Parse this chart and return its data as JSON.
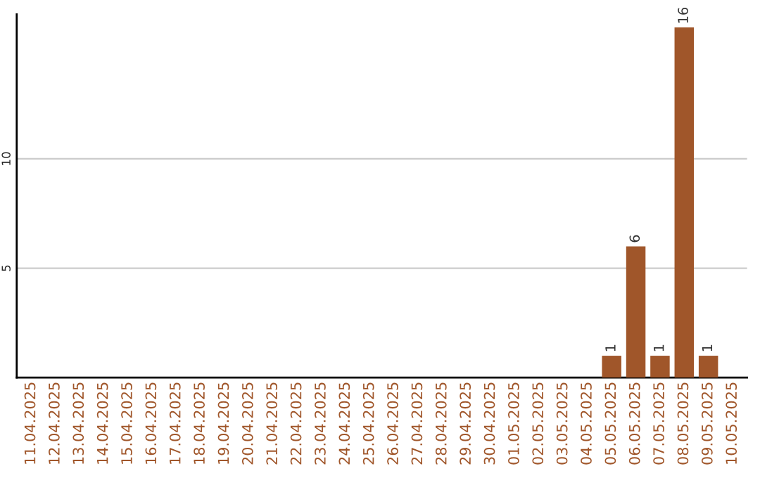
{
  "chart_data": {
    "type": "bar",
    "categories": [
      "11.04.2025",
      "12.04.2025",
      "13.04.2025",
      "14.04.2025",
      "15.04.2025",
      "16.04.2025",
      "17.04.2025",
      "18.04.2025",
      "19.04.2025",
      "20.04.2025",
      "21.04.2025",
      "22.04.2025",
      "23.04.2025",
      "24.04.2025",
      "25.04.2025",
      "26.04.2025",
      "27.04.2025",
      "28.04.2025",
      "29.04.2025",
      "30.04.2025",
      "01.05.2025",
      "02.05.2025",
      "03.05.2025",
      "04.05.2025",
      "05.05.2025",
      "06.05.2025",
      "07.05.2025",
      "08.05.2025",
      "09.05.2025",
      "10.05.2025"
    ],
    "series": [
      {
        "color": "#a0562a",
        "values": [
          0,
          0,
          0,
          0,
          0,
          0,
          0,
          0,
          0,
          0,
          0,
          0,
          0,
          0,
          0,
          0,
          0,
          0,
          0,
          0,
          0,
          0,
          0,
          0,
          1,
          6,
          1,
          16,
          1,
          0
        ],
        "value_labels": [
          null,
          null,
          null,
          null,
          null,
          null,
          null,
          null,
          null,
          null,
          null,
          null,
          null,
          null,
          null,
          null,
          null,
          null,
          null,
          null,
          null,
          null,
          null,
          null,
          "1",
          "6",
          "1",
          "16",
          "1",
          null
        ]
      }
    ],
    "ylim": [
      0,
      16.6
    ],
    "yticks": [
      5,
      10
    ],
    "grid": "y",
    "legend": false
  }
}
